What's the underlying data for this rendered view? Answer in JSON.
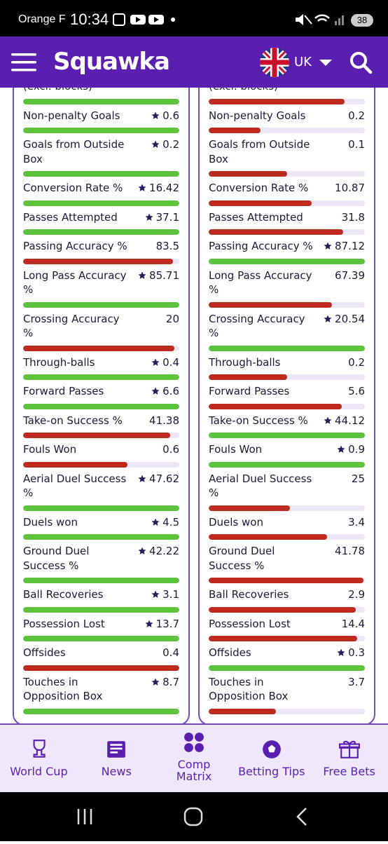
{
  "status_bar": {
    "carrier": "Orange F",
    "time": "10:34",
    "battery": "38"
  },
  "header": {
    "logo": "Squawka",
    "region": "UK"
  },
  "bar_colors": {
    "better": "#5cc33a",
    "worse": "#bf2a1e",
    "track": "#ece6f6"
  },
  "rows": [
    {
      "label": "(excl. blocks)",
      "left": {
        "value": null,
        "star": false,
        "bar": 1.0,
        "color": "better"
      },
      "right": {
        "value": null,
        "star": false,
        "bar": 0.87,
        "color": "worse"
      }
    },
    {
      "label": "Non-penalty Goals",
      "left": {
        "value": 0.6,
        "star": true,
        "bar": 1.0,
        "color": "better"
      },
      "right": {
        "value": 0.2,
        "star": false,
        "bar": 0.33,
        "color": "worse"
      }
    },
    {
      "label": "Goals from Outside Box",
      "left": {
        "value": 0.2,
        "star": true,
        "bar": 1.0,
        "color": "better"
      },
      "right": {
        "value": 0.1,
        "star": false,
        "bar": 0.5,
        "color": "worse"
      }
    },
    {
      "label": "Conversion Rate %",
      "left": {
        "value": 16.42,
        "star": true,
        "bar": 1.0,
        "color": "better"
      },
      "right": {
        "value": 10.87,
        "star": false,
        "bar": 0.66,
        "color": "worse"
      }
    },
    {
      "label": "Passes Attempted",
      "left": {
        "value": 37.1,
        "star": true,
        "bar": 1.0,
        "color": "better"
      },
      "right": {
        "value": 31.8,
        "star": false,
        "bar": 0.86,
        "color": "worse"
      }
    },
    {
      "label": "Passing Accuracy %",
      "left": {
        "value": 83.5,
        "star": false,
        "bar": 0.96,
        "color": "worse"
      },
      "right": {
        "value": 87.12,
        "star": true,
        "bar": 1.0,
        "color": "better"
      }
    },
    {
      "label": "Long Pass Accuracy %",
      "left": {
        "value": 85.71,
        "star": true,
        "bar": 1.0,
        "color": "better"
      },
      "right": {
        "value": 67.39,
        "star": false,
        "bar": 0.79,
        "color": "worse"
      }
    },
    {
      "label": "Crossing Accuracy %",
      "left": {
        "value": 20,
        "star": false,
        "bar": 0.97,
        "color": "worse"
      },
      "right": {
        "value": 20.54,
        "star": true,
        "bar": 1.0,
        "color": "better"
      }
    },
    {
      "label": "Through-balls",
      "left": {
        "value": 0.4,
        "star": true,
        "bar": 1.0,
        "color": "better"
      },
      "right": {
        "value": 0.2,
        "star": false,
        "bar": 0.5,
        "color": "worse"
      }
    },
    {
      "label": "Forward Passes",
      "left": {
        "value": 6.6,
        "star": true,
        "bar": 1.0,
        "color": "better"
      },
      "right": {
        "value": 5.6,
        "star": false,
        "bar": 0.85,
        "color": "worse"
      }
    },
    {
      "label": "Take-on Success %",
      "left": {
        "value": 41.38,
        "star": false,
        "bar": 0.94,
        "color": "worse"
      },
      "right": {
        "value": 44.12,
        "star": true,
        "bar": 1.0,
        "color": "better"
      }
    },
    {
      "label": "Fouls Won",
      "left": {
        "value": 0.6,
        "star": false,
        "bar": 0.67,
        "color": "worse"
      },
      "right": {
        "value": 0.9,
        "star": true,
        "bar": 1.0,
        "color": "better"
      }
    },
    {
      "label": "Aerial Duel Success %",
      "left": {
        "value": 47.62,
        "star": true,
        "bar": 1.0,
        "color": "better"
      },
      "right": {
        "value": 25,
        "star": false,
        "bar": 0.52,
        "color": "worse"
      }
    },
    {
      "label": "Duels won",
      "left": {
        "value": 4.5,
        "star": true,
        "bar": 1.0,
        "color": "better"
      },
      "right": {
        "value": 3.4,
        "star": false,
        "bar": 0.76,
        "color": "worse"
      }
    },
    {
      "label": "Ground Duel Success %",
      "left": {
        "value": 42.22,
        "star": true,
        "bar": 1.0,
        "color": "better"
      },
      "right": {
        "value": 41.78,
        "star": false,
        "bar": 0.99,
        "color": "worse"
      }
    },
    {
      "label": "Ball Recoveries",
      "left": {
        "value": 3.1,
        "star": true,
        "bar": 1.0,
        "color": "better"
      },
      "right": {
        "value": 2.9,
        "star": false,
        "bar": 0.94,
        "color": "worse"
      }
    },
    {
      "label": "Possession Lost",
      "left": {
        "value": 13.7,
        "star": true,
        "bar": 1.0,
        "color": "better"
      },
      "right": {
        "value": 14.4,
        "star": false,
        "bar": 0.95,
        "color": "worse"
      }
    },
    {
      "label": "Offsides",
      "left": {
        "value": 0.4,
        "star": false,
        "bar": 1.0,
        "color": "worse"
      },
      "right": {
        "value": 0.3,
        "star": true,
        "bar": 1.0,
        "color": "better"
      }
    },
    {
      "label": "Touches in Opposition Box",
      "left": {
        "value": 8.7,
        "star": true,
        "bar": 1.0,
        "color": "better"
      },
      "right": {
        "value": 3.7,
        "star": false,
        "bar": 0.43,
        "color": "worse"
      }
    }
  ],
  "nav": [
    "World Cup",
    "News",
    "Comp Matrix",
    "Betting Tips",
    "Free Bets"
  ]
}
